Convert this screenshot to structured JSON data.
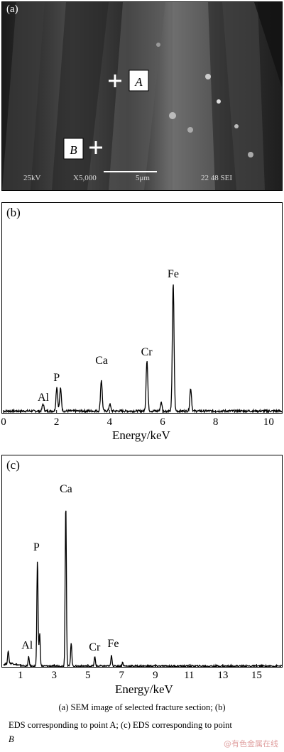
{
  "panel_a": {
    "label": "(a)",
    "point_a": "A",
    "point_b": "B",
    "info_kv": "25kV",
    "info_mag": "X5,000",
    "info_scale": "5μm",
    "info_id": "22 48 SEI"
  },
  "chart_data": [
    {
      "type": "line",
      "panel_label": "(b)",
      "xlabel": "Energy/keV",
      "ylabel": "",
      "xlim": [
        0,
        10.5
      ],
      "ylim": [
        0,
        100
      ],
      "x_ticks": [
        "0",
        "2",
        "4",
        "6",
        "8",
        "10"
      ],
      "x_tick_values": [
        0,
        2,
        4,
        6,
        8,
        10
      ],
      "annotations": [
        {
          "text": "Al",
          "x": 1.5,
          "y": 8
        },
        {
          "text": "P",
          "x": 2.0,
          "y": 22
        },
        {
          "text": "Ca",
          "x": 3.7,
          "y": 34
        },
        {
          "text": "Cr",
          "x": 5.4,
          "y": 40
        },
        {
          "text": "Fe",
          "x": 6.4,
          "y": 95
        }
      ],
      "peaks": [
        {
          "element": "Al",
          "x": 1.49,
          "y": 5
        },
        {
          "element": "P",
          "x": 2.01,
          "y": 17
        },
        {
          "element": "P-Kb",
          "x": 2.15,
          "y": 16
        },
        {
          "element": "Ca",
          "x": 3.69,
          "y": 22
        },
        {
          "element": "Ca-Kb",
          "x": 4.01,
          "y": 5
        },
        {
          "element": "Cr",
          "x": 5.41,
          "y": 36
        },
        {
          "element": "Cr-Kb",
          "x": 5.95,
          "y": 6
        },
        {
          "element": "Fe",
          "x": 6.4,
          "y": 90
        },
        {
          "element": "Fe-Kb",
          "x": 7.06,
          "y": 16
        }
      ]
    },
    {
      "type": "line",
      "panel_label": "(c)",
      "xlabel": "Energy/keV",
      "ylabel": "",
      "xlim": [
        0,
        16.5
      ],
      "ylim": [
        0,
        100
      ],
      "x_ticks": [
        "1",
        "3",
        "5",
        "7",
        "9",
        "11",
        "13",
        "15"
      ],
      "x_tick_values": [
        1,
        3,
        5,
        7,
        9,
        11,
        13,
        15
      ],
      "annotations": [
        {
          "text": "Al",
          "x": 1.4,
          "y": 10
        },
        {
          "text": "P",
          "x": 1.95,
          "y": 64
        },
        {
          "text": "Ca",
          "x": 3.7,
          "y": 96
        },
        {
          "text": "Cr",
          "x": 5.4,
          "y": 9
        },
        {
          "text": "Fe",
          "x": 6.5,
          "y": 11
        }
      ],
      "peaks": [
        {
          "element": "C",
          "x": 0.28,
          "y": 7
        },
        {
          "element": "Al",
          "x": 1.49,
          "y": 5
        },
        {
          "element": "P",
          "x": 2.01,
          "y": 58
        },
        {
          "element": "P-Kb",
          "x": 2.14,
          "y": 18
        },
        {
          "element": "Ca",
          "x": 3.69,
          "y": 90
        },
        {
          "element": "Ca-Kb",
          "x": 4.01,
          "y": 13
        },
        {
          "element": "Cr",
          "x": 5.41,
          "y": 5
        },
        {
          "element": "Fe",
          "x": 6.4,
          "y": 6
        },
        {
          "element": "Fe-Kb",
          "x": 7.06,
          "y": 2
        }
      ]
    }
  ],
  "caption": {
    "line1": "(a) SEM image of selected fracture section; (b)",
    "line2": "EDS corresponding to point A; (c) EDS corresponding to point",
    "line3": "B"
  },
  "watermark": "@有色金属在线"
}
